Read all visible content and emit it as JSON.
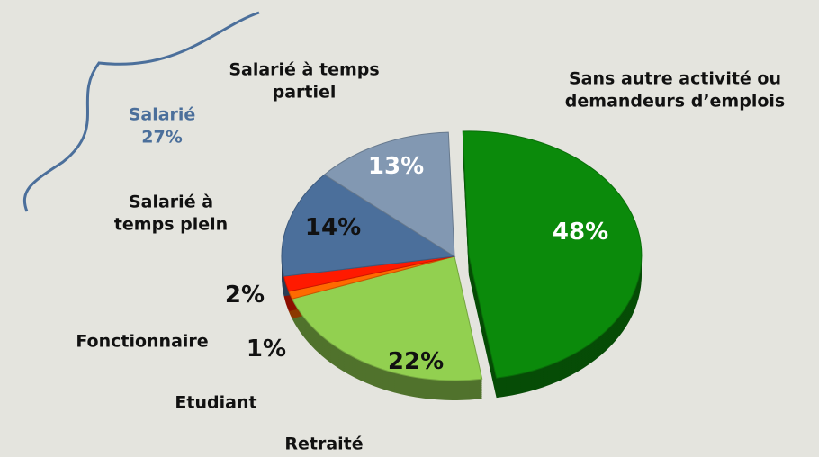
{
  "chart_data": {
    "type": "pie",
    "categories": [
      "Sans autre activité ou demandeurs d’emplois",
      "Retraité",
      "Etudiant",
      "Fonctionnaire",
      "Salarié à temps plein",
      "Salarié à temps partiel"
    ],
    "values": [
      48,
      22,
      1,
      2,
      14,
      13
    ],
    "value_labels": [
      "48%",
      "22%",
      "1%",
      "2%",
      "14%",
      "13%"
    ],
    "colors": [
      "#0b8a0b",
      "#92d050",
      "#ff6a00",
      "#ff1a00",
      "#4b6f9b",
      "#8298b2"
    ],
    "annotation": {
      "label": "Salarié",
      "value_label": "27%"
    }
  }
}
